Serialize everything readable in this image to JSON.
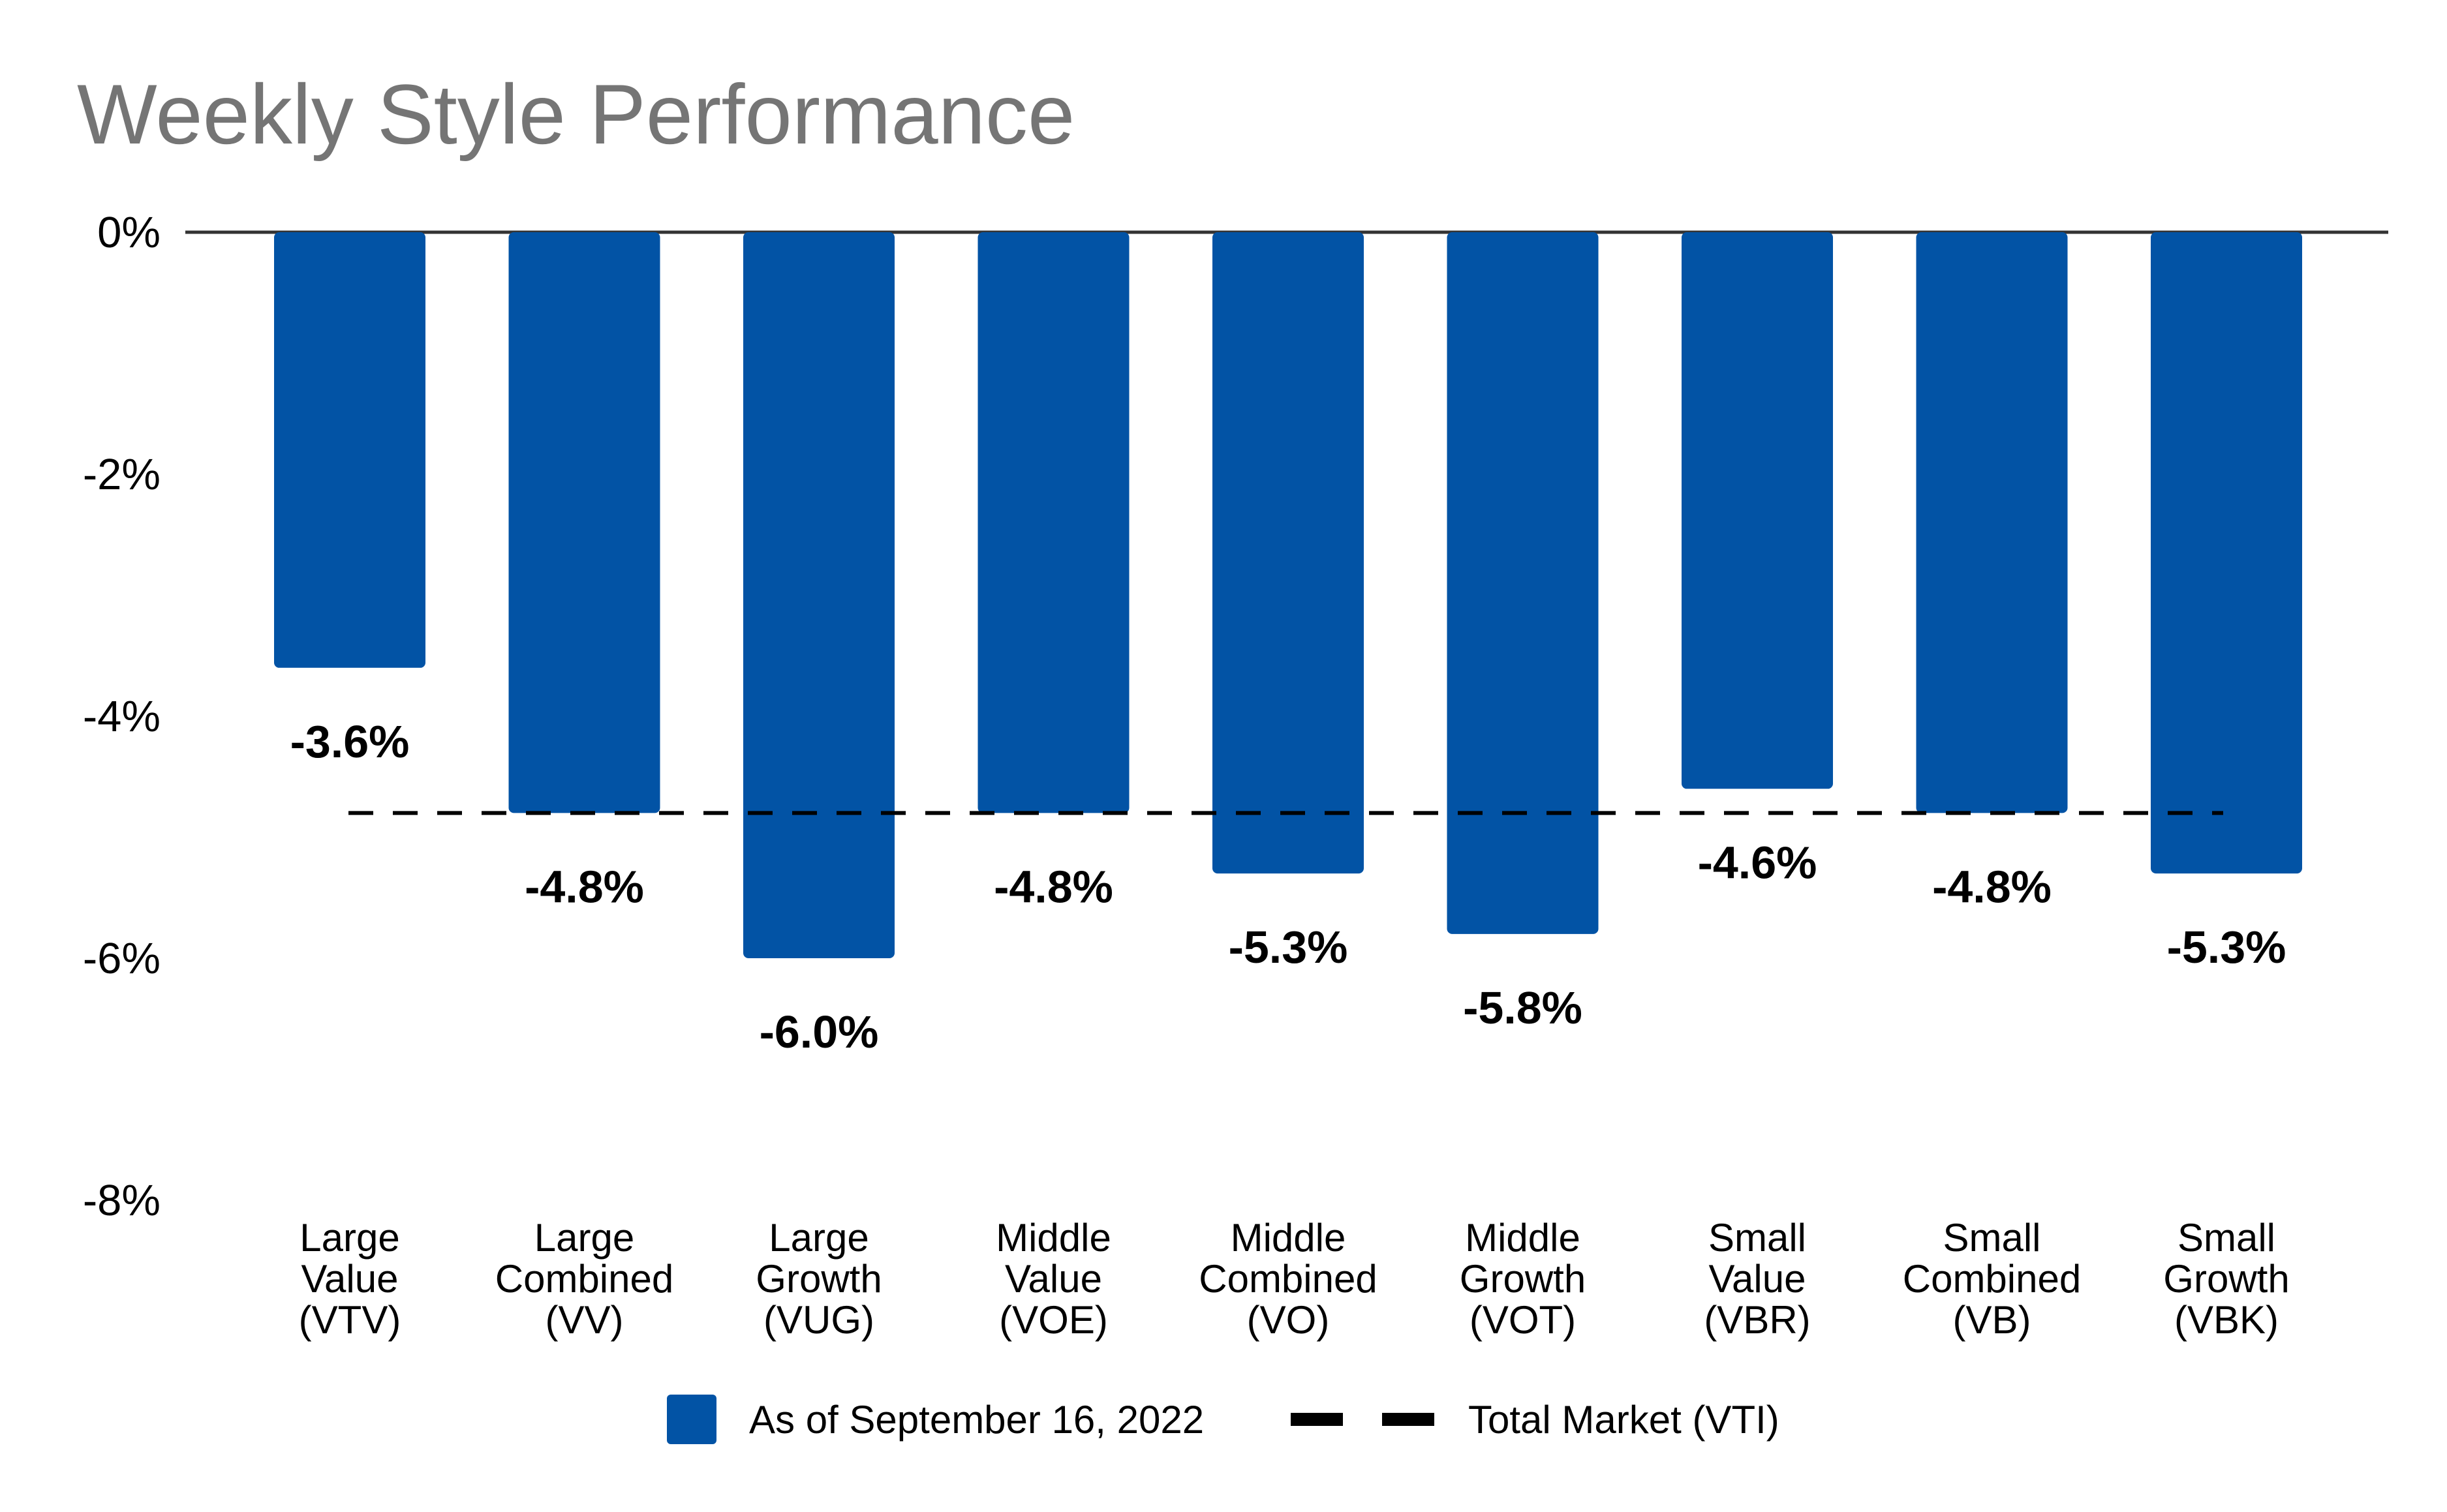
{
  "chart_data": {
    "type": "bar",
    "title": "Weekly Style Performance",
    "xlabel": "",
    "ylabel": "",
    "ylim": [
      -8,
      0
    ],
    "yticks": [
      0,
      -2,
      -4,
      -6,
      -8
    ],
    "ytick_labels": [
      "0%",
      "-2%",
      "-4%",
      "-6%",
      "-8%"
    ],
    "categories": [
      [
        "Large",
        "Value",
        "(VTV)"
      ],
      [
        "Large",
        "Combined",
        "(VV)"
      ],
      [
        "Large",
        "Growth",
        "(VUG)"
      ],
      [
        "Middle",
        "Value",
        "(VOE)"
      ],
      [
        "Middle",
        "Combined",
        "(VO)"
      ],
      [
        "Middle",
        "Growth",
        "(VOT)"
      ],
      [
        "Small",
        "Value",
        "(VBR)"
      ],
      [
        "Small",
        "Combined",
        "(VB)"
      ],
      [
        "Small",
        "Growth",
        "(VBK)"
      ]
    ],
    "series": [
      {
        "name": "As of September 16, 2022",
        "values": [
          -3.6,
          -4.8,
          -6.0,
          -4.8,
          -5.3,
          -5.8,
          -4.6,
          -4.8,
          -5.3
        ],
        "labels": [
          "-3.6%",
          "-4.8%",
          "-6.0%",
          "-4.8%",
          "-5.3%",
          "-5.8%",
          "-4.6%",
          "-4.8%",
          "-5.3%"
        ],
        "color": "#0253A5"
      }
    ],
    "reference_line": {
      "name": "Total Market (VTI)",
      "value": -4.8,
      "style": "dashed",
      "color": "#000000"
    },
    "grid": false,
    "legend": "bottom-center"
  }
}
